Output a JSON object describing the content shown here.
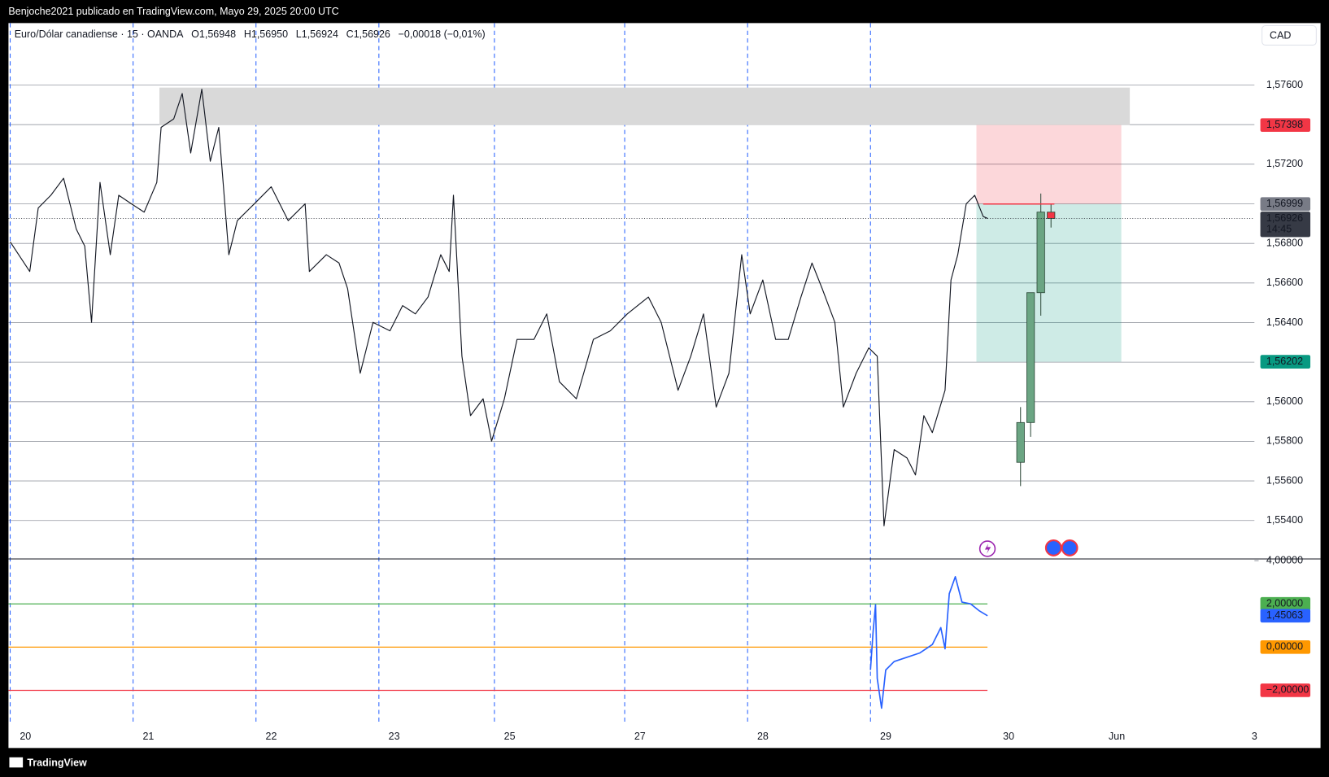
{
  "header": {
    "caption": "Benjoche2021 publicado en TradingView.com, Mayo 29, 2025 20:00 UTC",
    "symbol": "Euro/Dólar canadiense · 15 · OANDA",
    "ohlc": [
      {
        "label": "O",
        "value": "1,56948"
      },
      {
        "label": "H",
        "value": "1,56950"
      },
      {
        "label": "L",
        "value": "1,56924"
      },
      {
        "label": "C",
        "value": "1,56926"
      }
    ],
    "change": "−0,00018 (−0,01%)",
    "currency": "CAD"
  },
  "footer": {
    "brand": "TradingView"
  },
  "chart_data": [
    {
      "type": "line",
      "series": [
        {
          "color": "#131722",
          "x": [
            0,
            0.159,
            0.228,
            0.331,
            0.434,
            0.538,
            0.607,
            0.662,
            0.731,
            0.814,
            0.883,
            0.986,
            1.09,
            1.193,
            1.228,
            1.331,
            1.4,
            1.469,
            1.559,
            1.628,
            1.697,
            1.779,
            1.848,
            1.986,
            2.124,
            2.262,
            2.4,
            2.434,
            2.572,
            2.676,
            2.745,
            2.848,
            2.952,
            3.09,
            3.193,
            3.297,
            3.4,
            3.503,
            3.572,
            3.607,
            3.676,
            3.745,
            3.848,
            3.917,
            4.021,
            4.124,
            4.262,
            4.366,
            4.469,
            4.607,
            4.745,
            4.883,
            5.021,
            5.193,
            5.297,
            5.434,
            5.538,
            5.641,
            5.745,
            5.848,
            5.952,
            6.021,
            6.124,
            6.228,
            6.331,
            6.434,
            6.524,
            6.607,
            6.71,
            6.779,
            6.883,
            6.986,
            7.055,
            7.11,
            7.193,
            7.297,
            7.366,
            7.434,
            7.503,
            7.607,
            7.655,
            7.71,
            7.779,
            7.848,
            7.917,
            7.952
          ],
          "values": [
            1.56808,
            1.56658,
            1.56979,
            1.57043,
            1.57129,
            1.56872,
            1.56786,
            1.56401,
            1.57108,
            1.56743,
            1.57043,
            1.57,
            1.56958,
            1.57108,
            1.57386,
            1.57429,
            1.57557,
            1.57257,
            1.57579,
            1.57215,
            1.57386,
            1.56743,
            1.56915,
            1.57,
            1.57086,
            1.56915,
            1.57,
            1.56658,
            1.56743,
            1.56701,
            1.56572,
            1.56144,
            1.56401,
            1.56358,
            1.56486,
            1.56444,
            1.56529,
            1.56743,
            1.56658,
            1.57043,
            1.5623,
            1.5593,
            1.56015,
            1.55801,
            1.56015,
            1.56315,
            1.56315,
            1.56444,
            1.56101,
            1.56015,
            1.56315,
            1.56358,
            1.56444,
            1.56529,
            1.56401,
            1.56058,
            1.5623,
            1.56444,
            1.55973,
            1.56144,
            1.56743,
            1.56444,
            1.56615,
            1.56315,
            1.56315,
            1.56529,
            1.56701,
            1.56572,
            1.56401,
            1.55973,
            1.56144,
            1.56272,
            1.5623,
            1.55373,
            1.55758,
            1.55716,
            1.5563,
            1.5593,
            1.55844,
            1.56058,
            1.56615,
            1.56743,
            1.57,
            1.57043,
            1.56936,
            1.56926
          ]
        }
      ],
      "last_value_label": "1,56926",
      "countdown": "14:45",
      "xlim": [
        -0.014,
        10.124
      ],
      "xticks": [
        {
          "value": 0,
          "label": "20"
        },
        {
          "value": 1,
          "label": "21"
        },
        {
          "value": 2,
          "label": "22"
        },
        {
          "value": 3,
          "label": "23"
        },
        {
          "value": 3.94,
          "label": "25"
        },
        {
          "value": 5,
          "label": "27"
        },
        {
          "value": 6,
          "label": "28"
        },
        {
          "value": 7,
          "label": "29"
        },
        {
          "value": 8,
          "label": "30"
        },
        {
          "value": 8.88,
          "label": "Jun"
        },
        {
          "value": 10,
          "label": "3"
        }
      ],
      "ylim": [
        1.55206,
        1.57913
      ],
      "yticks": [
        {
          "value": 1.554,
          "label": "1,55400"
        },
        {
          "value": 1.556,
          "label": "1,55600"
        },
        {
          "value": 1.558,
          "label": "1,55800"
        },
        {
          "value": 1.56,
          "label": "1,56000"
        },
        {
          "value": 1.562,
          "label": "1,56200"
        },
        {
          "value": 1.564,
          "label": "1,56400"
        },
        {
          "value": 1.566,
          "label": "1,56600"
        },
        {
          "value": 1.568,
          "label": "1,56800"
        },
        {
          "value": 1.57,
          "label": "1,57000"
        },
        {
          "value": 1.572,
          "label": "1,57200"
        },
        {
          "value": 1.574,
          "label": "1,57400"
        },
        {
          "value": 1.576,
          "label": "1,57600"
        }
      ],
      "grid": true,
      "zone": {
        "x": [
          1.214,
          9.11
        ],
        "y": [
          1.57398,
          1.57587
        ],
        "color": "#d9d9d9"
      },
      "position": {
        "x": [
          7.862,
          9.041
        ],
        "stop": {
          "value": 1.57398,
          "label": "1,57398",
          "color": "#f23645"
        },
        "entry": {
          "value": 1.56999,
          "label": "1,56999",
          "color": "#787b86"
        },
        "target": {
          "value": 1.56202,
          "label": "1,56202",
          "color": "#089981"
        }
      }
    },
    {
      "type": "candlestick",
      "x": [
        8.221,
        8.303,
        8.386,
        8.469
      ],
      "open": [
        1.55694,
        1.55895,
        1.56551,
        1.56958
      ],
      "high": [
        1.55973,
        1.56551,
        1.57052,
        1.56999
      ],
      "low": [
        1.55574,
        1.55823,
        1.56435,
        1.5688
      ],
      "close": [
        1.55895,
        1.56551,
        1.56958,
        1.56926
      ],
      "colors": {
        "up": "#6ba583",
        "down": "#f23645"
      }
    },
    {
      "type": "line",
      "series": [
        {
          "color": "#2962ff",
          "x": [
            7.0,
            7.021,
            7.041,
            7.055,
            7.09,
            7.124,
            7.193,
            7.297,
            7.4,
            7.503,
            7.572,
            7.607,
            7.641,
            7.69,
            7.745,
            7.814,
            7.883,
            7.952
          ],
          "values": [
            -1.059,
            0.706,
            1.961,
            -1.451,
            -2.824,
            -1.059,
            -0.667,
            -0.471,
            -0.275,
            0.118,
            0.902,
            -0.078,
            2.471,
            3.255,
            2.078,
            2.0,
            1.686,
            1.45063
          ]
        }
      ],
      "last_value_label": "1,45063",
      "ylim": [
        -3.61,
        4.08
      ],
      "yticks": [
        {
          "value": 4,
          "label": "4,00000"
        },
        {
          "value": 2,
          "label": "2,00000"
        },
        {
          "value": 0,
          "label": "0,00000"
        },
        {
          "value": -2,
          "label": "−2,00000"
        }
      ],
      "levels": [
        {
          "value": 2,
          "color": "#4caf50"
        },
        {
          "value": 0,
          "color": "#ff9800"
        },
        {
          "value": -2,
          "color": "#f23645"
        }
      ]
    }
  ]
}
